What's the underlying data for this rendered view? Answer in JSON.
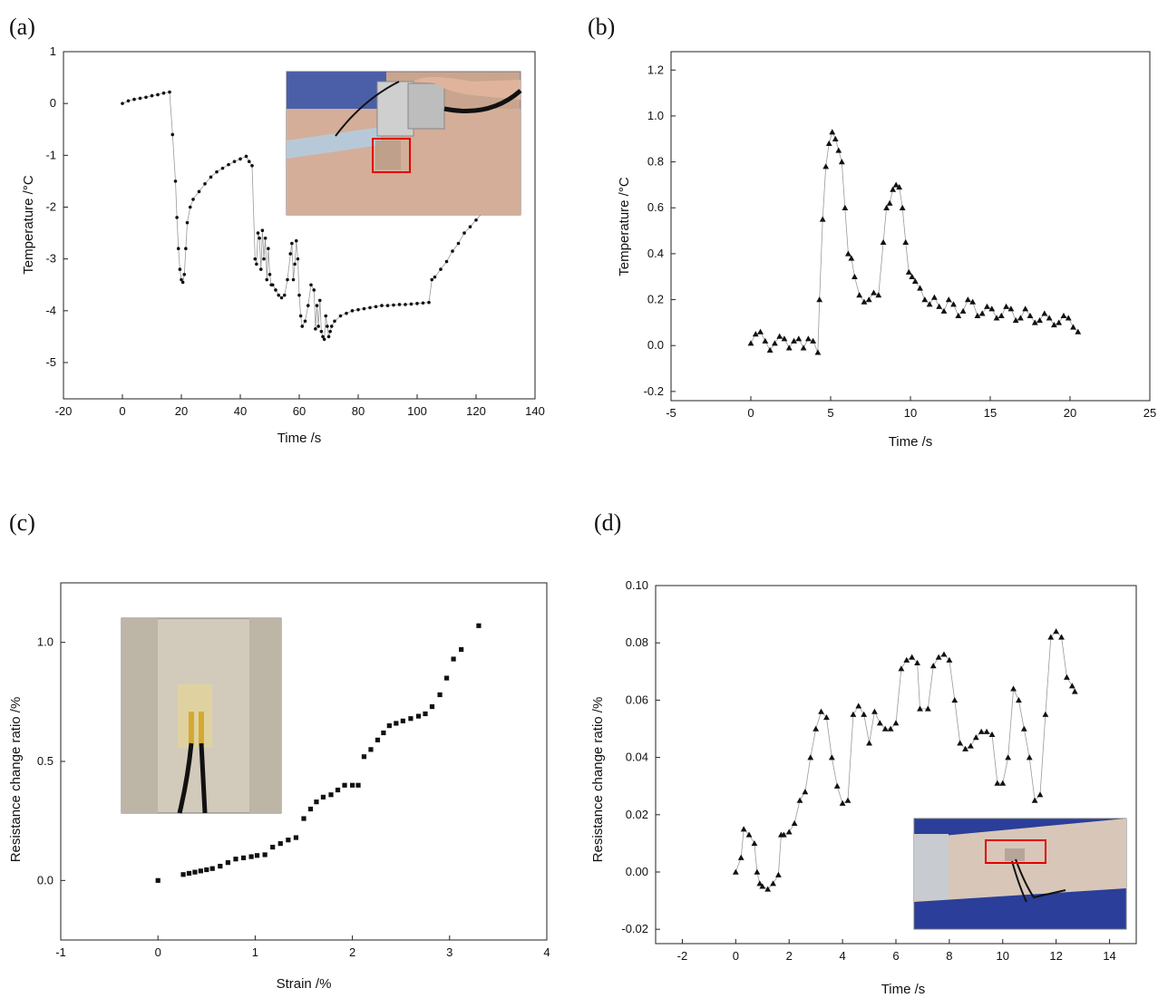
{
  "chart_data": [
    {
      "panel": "(a)",
      "type": "scatter",
      "marker": "dot",
      "connected": true,
      "xlabel": "Time /s",
      "ylabel": "Temperature /°C",
      "xlim": [
        -20,
        140
      ],
      "ylim": [
        -5.7,
        1
      ],
      "xticks": [
        -20,
        0,
        20,
        40,
        60,
        80,
        100,
        120,
        140
      ],
      "yticks": [
        1,
        0,
        -1,
        -2,
        -3,
        -4,
        -5
      ],
      "tick_labels_y": [
        "1",
        "0",
        "-1",
        "-2",
        "-3",
        "-4",
        "-5"
      ],
      "inset": "photo of sensor on forearm with red highlight box",
      "series": [
        {
          "x": [
            0,
            2,
            4,
            6,
            8,
            10,
            12,
            14,
            16,
            17,
            18,
            18.5,
            19,
            19.5,
            20,
            20.5,
            21,
            21.5,
            22,
            23,
            24,
            26,
            28,
            30,
            32,
            34,
            36,
            38,
            40,
            42,
            43,
            44,
            45,
            45.5,
            46,
            46.5,
            47,
            47.5,
            48,
            48.5,
            49,
            49.5,
            50,
            50.5,
            51,
            52,
            53,
            54,
            55,
            56,
            57,
            57.5,
            58,
            58.5,
            59,
            59.5,
            60,
            60.5,
            61,
            62,
            63,
            64,
            65,
            65.5,
            66,
            66.5,
            67,
            67.5,
            68,
            68.5,
            69,
            69.5,
            70,
            70.5,
            71,
            72,
            74,
            76,
            78,
            80,
            82,
            84,
            86,
            88,
            90,
            92,
            94,
            96,
            98,
            100,
            102,
            104,
            105,
            106,
            108,
            110,
            112,
            114,
            116,
            118,
            120,
            122,
            124,
            126
          ],
          "y": [
            0,
            0.05,
            0.08,
            0.1,
            0.12,
            0.15,
            0.17,
            0.2,
            0.22,
            -0.6,
            -1.5,
            -2.2,
            -2.8,
            -3.2,
            -3.4,
            -3.45,
            -3.3,
            -2.8,
            -2.3,
            -2,
            -1.85,
            -1.7,
            -1.55,
            -1.42,
            -1.32,
            -1.25,
            -1.18,
            -1.12,
            -1.07,
            -1.02,
            -1.12,
            -1.2,
            -3,
            -3.1,
            -2.5,
            -2.6,
            -3.2,
            -2.45,
            -3,
            -2.6,
            -3.4,
            -2.8,
            -3.3,
            -3.5,
            -3.5,
            -3.6,
            -3.7,
            -3.75,
            -3.7,
            -3.4,
            -2.9,
            -2.7,
            -3.4,
            -3.1,
            -2.65,
            -3,
            -3.7,
            -4.1,
            -4.3,
            -4.2,
            -3.9,
            -3.5,
            -3.6,
            -4.35,
            -3.9,
            -4.3,
            -3.8,
            -4.4,
            -4.5,
            -4.55,
            -4.1,
            -4.3,
            -4.5,
            -4.4,
            -4.3,
            -4.2,
            -4.1,
            -4.05,
            -4.0,
            -3.98,
            -3.96,
            -3.94,
            -3.92,
            -3.9,
            -3.9,
            -3.89,
            -3.88,
            -3.88,
            -3.87,
            -3.86,
            -3.85,
            -3.84,
            -3.4,
            -3.35,
            -3.2,
            -3.05,
            -2.85,
            -2.7,
            -2.5,
            -2.38,
            -2.25,
            -2.12,
            -2,
            -1.9
          ]
        }
      ]
    },
    {
      "panel": "(b)",
      "type": "line",
      "marker": "triangle",
      "xlabel": "Time /s",
      "ylabel": "Temperature /°C",
      "xlim": [
        -5,
        25
      ],
      "ylim": [
        -0.24,
        1.28
      ],
      "xticks": [
        -5,
        0,
        5,
        10,
        15,
        20,
        25
      ],
      "yticks": [
        1.2,
        1.0,
        0.8,
        0.6,
        0.4,
        0.2,
        0.0,
        -0.2
      ],
      "tick_labels_y": [
        "1.2",
        "1.0",
        "0.8",
        "0.6",
        "0.4",
        "0.2",
        "0.0",
        "-0.2"
      ],
      "series": [
        {
          "x": [
            0,
            0.3,
            0.6,
            0.9,
            1.2,
            1.5,
            1.8,
            2.1,
            2.4,
            2.7,
            3.0,
            3.3,
            3.6,
            3.9,
            4.2,
            4.3,
            4.5,
            4.7,
            4.9,
            5.1,
            5.3,
            5.5,
            5.7,
            5.9,
            6.1,
            6.3,
            6.5,
            6.8,
            7.1,
            7.4,
            7.7,
            8.0,
            8.3,
            8.5,
            8.7,
            8.9,
            9.1,
            9.3,
            9.5,
            9.7,
            9.9,
            10.1,
            10.3,
            10.6,
            10.9,
            11.2,
            11.5,
            11.8,
            12.1,
            12.4,
            12.7,
            13.0,
            13.3,
            13.6,
            13.9,
            14.2,
            14.5,
            14.8,
            15.1,
            15.4,
            15.7,
            16.0,
            16.3,
            16.6,
            16.9,
            17.2,
            17.5,
            17.8,
            18.1,
            18.4,
            18.7,
            19.0,
            19.3,
            19.6,
            19.9,
            20.2,
            20.5
          ],
          "y": [
            0.01,
            0.05,
            0.06,
            0.02,
            -0.02,
            0.01,
            0.04,
            0.03,
            -0.01,
            0.02,
            0.03,
            -0.01,
            0.03,
            0.02,
            -0.03,
            0.2,
            0.55,
            0.78,
            0.88,
            0.93,
            0.9,
            0.85,
            0.8,
            0.6,
            0.4,
            0.38,
            0.3,
            0.22,
            0.19,
            0.2,
            0.23,
            0.22,
            0.45,
            0.6,
            0.62,
            0.68,
            0.7,
            0.69,
            0.6,
            0.45,
            0.32,
            0.3,
            0.28,
            0.25,
            0.2,
            0.18,
            0.21,
            0.17,
            0.15,
            0.2,
            0.18,
            0.13,
            0.15,
            0.2,
            0.19,
            0.13,
            0.14,
            0.17,
            0.16,
            0.12,
            0.13,
            0.17,
            0.16,
            0.11,
            0.12,
            0.16,
            0.13,
            0.1,
            0.11,
            0.14,
            0.12,
            0.09,
            0.1,
            0.13,
            0.12,
            0.08,
            0.06
          ]
        }
      ]
    },
    {
      "panel": "(c)",
      "type": "scatter",
      "marker": "square",
      "xlabel": "Strain /%",
      "ylabel": "Resistance change ratio /%",
      "xlim": [
        -1,
        4
      ],
      "ylim": [
        -0.25,
        1.25
      ],
      "xticks": [
        -1,
        0,
        1,
        2,
        3,
        4
      ],
      "yticks": [
        1.0,
        0.5,
        0.0
      ],
      "tick_labels_y": [
        "1.0",
        "0.5",
        "0.0"
      ],
      "inset": "photo of sensor strip with black leads",
      "series": [
        {
          "x": [
            0,
            0.26,
            0.32,
            0.38,
            0.44,
            0.5,
            0.56,
            0.64,
            0.72,
            0.8,
            0.88,
            0.96,
            1.02,
            1.1,
            1.18,
            1.26,
            1.34,
            1.42,
            1.5,
            1.57,
            1.63,
            1.7,
            1.78,
            1.85,
            1.92,
            2.0,
            2.06,
            2.12,
            2.19,
            2.26,
            2.32,
            2.38,
            2.45,
            2.52,
            2.6,
            2.68,
            2.75,
            2.82,
            2.9,
            2.97,
            3.04,
            3.12,
            3.3
          ],
          "y": [
            0,
            0.025,
            0.03,
            0.035,
            0.04,
            0.045,
            0.05,
            0.06,
            0.075,
            0.09,
            0.095,
            0.1,
            0.105,
            0.108,
            0.14,
            0.155,
            0.17,
            0.18,
            0.26,
            0.3,
            0.33,
            0.35,
            0.36,
            0.38,
            0.4,
            0.4,
            0.4,
            0.52,
            0.55,
            0.59,
            0.62,
            0.65,
            0.66,
            0.67,
            0.68,
            0.69,
            0.7,
            0.73,
            0.78,
            0.85,
            0.93,
            0.97,
            1.07
          ]
        }
      ]
    },
    {
      "panel": "(d)",
      "type": "line",
      "marker": "triangle",
      "xlabel": "Time /s",
      "ylabel": "Resistance change ratio /%",
      "xlim": [
        -3,
        15
      ],
      "ylim": [
        -0.025,
        0.1
      ],
      "xticks": [
        -2,
        0,
        2,
        4,
        6,
        8,
        10,
        12,
        14
      ],
      "yticks": [
        0.1,
        0.08,
        0.06,
        0.04,
        0.02,
        0.0,
        -0.02
      ],
      "tick_labels_y": [
        "0.10",
        "0.08",
        "0.06",
        "0.04",
        "0.02",
        "0.00",
        "-0.02"
      ],
      "inset": "photo of sensor on forearm over blue cloth with red highlight box",
      "series": [
        {
          "x": [
            0,
            0.2,
            0.3,
            0.5,
            0.7,
            0.8,
            0.9,
            1.0,
            1.2,
            1.4,
            1.6,
            1.7,
            1.8,
            2.0,
            2.2,
            2.4,
            2.6,
            2.8,
            3.0,
            3.2,
            3.4,
            3.6,
            3.8,
            4.0,
            4.2,
            4.4,
            4.6,
            4.8,
            5.0,
            5.2,
            5.4,
            5.6,
            5.8,
            6.0,
            6.2,
            6.4,
            6.6,
            6.8,
            6.9,
            7.2,
            7.4,
            7.6,
            7.8,
            8.0,
            8.2,
            8.4,
            8.6,
            8.8,
            9.0,
            9.2,
            9.4,
            9.6,
            9.8,
            10.0,
            10.2,
            10.4,
            10.6,
            10.8,
            11.0,
            11.2,
            11.4,
            11.6,
            11.8,
            12.0,
            12.2,
            12.4,
            12.6,
            12.7
          ],
          "y": [
            0,
            0.005,
            0.015,
            0.013,
            0.01,
            0.0,
            -0.004,
            -0.005,
            -0.006,
            -0.004,
            -0.001,
            0.013,
            0.013,
            0.014,
            0.017,
            0.025,
            0.028,
            0.04,
            0.05,
            0.056,
            0.054,
            0.04,
            0.03,
            0.024,
            0.025,
            0.055,
            0.058,
            0.055,
            0.045,
            0.056,
            0.052,
            0.05,
            0.05,
            0.052,
            0.071,
            0.074,
            0.075,
            0.073,
            0.057,
            0.057,
            0.072,
            0.075,
            0.076,
            0.074,
            0.06,
            0.045,
            0.043,
            0.044,
            0.047,
            0.049,
            0.049,
            0.048,
            0.031,
            0.031,
            0.04,
            0.064,
            0.06,
            0.05,
            0.04,
            0.025,
            0.027,
            0.055,
            0.082,
            0.084,
            0.082,
            0.068,
            0.065,
            0.063
          ]
        }
      ]
    }
  ]
}
